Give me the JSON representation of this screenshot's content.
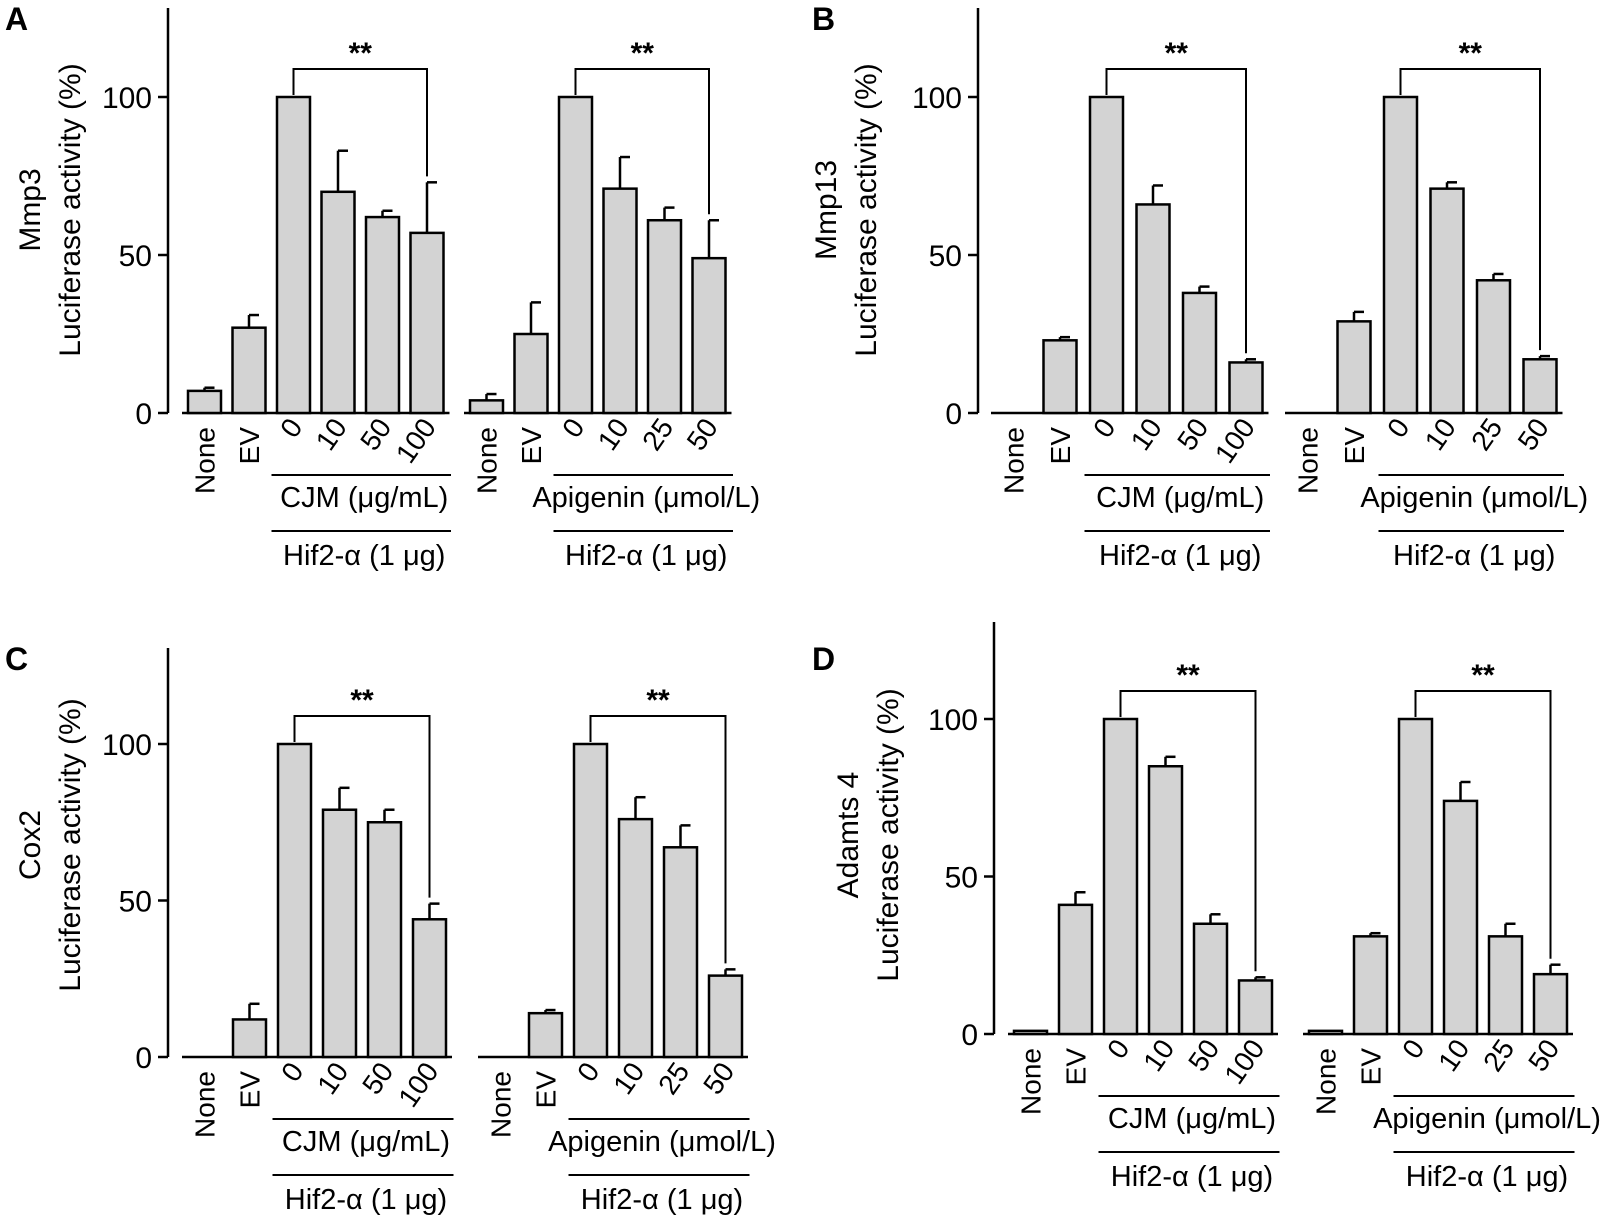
{
  "figure": {
    "panels": [
      {
        "letter": "A",
        "ylabel_top": "Mmp3",
        "ylabel_bottom": "Luciferase activity (%)"
      },
      {
        "letter": "B",
        "ylabel_top": "Mmp13",
        "ylabel_bottom": "Luciferase activity (%)"
      },
      {
        "letter": "C",
        "ylabel_top": "Cox2",
        "ylabel_bottom": "Luciferase activity (%)"
      },
      {
        "letter": "D",
        "ylabel_top": "Adamts 4",
        "ylabel_bottom": "Luciferase activity (%)"
      }
    ]
  },
  "chart_data": [
    {
      "type": "bar",
      "panel": "A",
      "ylabel": "Mmp3 Luciferase activity (%)",
      "ylim": [
        0,
        125
      ],
      "yticks": [
        0,
        50,
        100
      ],
      "groups": [
        {
          "categories": [
            "None",
            "EV",
            "0",
            "10",
            "50",
            "100"
          ],
          "values": [
            7,
            27,
            100,
            70,
            62,
            57
          ],
          "errors": [
            1,
            4,
            0,
            13,
            2,
            16
          ],
          "treatment_label": "CJM (μg/mL)",
          "hif_label": "Hif2-α (1 μg)",
          "significance": "**"
        },
        {
          "categories": [
            "None",
            "EV",
            "0",
            "10",
            "25",
            "50"
          ],
          "values": [
            4,
            25,
            100,
            71,
            61,
            49
          ],
          "errors": [
            2,
            10,
            0,
            10,
            4,
            12
          ],
          "treatment_label": "Apigenin (μmol/L)",
          "hif_label": "Hif2-α (1 μg)",
          "significance": "**"
        }
      ]
    },
    {
      "type": "bar",
      "panel": "B",
      "ylabel": "Mmp13 Luciferase activity (%)",
      "ylim": [
        0,
        125
      ],
      "yticks": [
        0,
        50,
        100
      ],
      "groups": [
        {
          "categories": [
            "None",
            "EV",
            "0",
            "10",
            "50",
            "100"
          ],
          "values": [
            0,
            23,
            100,
            66,
            38,
            16
          ],
          "errors": [
            0,
            1,
            0,
            6,
            2,
            1
          ],
          "treatment_label": "CJM (μg/mL)",
          "hif_label": "Hif2-α (1 μg)",
          "significance": "**"
        },
        {
          "categories": [
            "None",
            "EV",
            "0",
            "10",
            "25",
            "50"
          ],
          "values": [
            0,
            29,
            100,
            71,
            42,
            17
          ],
          "errors": [
            0,
            3,
            0,
            2,
            2,
            1
          ],
          "treatment_label": "Apigenin (μmol/L)",
          "hif_label": "Hif2-α (1 μg)",
          "significance": "**"
        }
      ]
    },
    {
      "type": "bar",
      "panel": "C",
      "ylabel": "Cox2 Luciferase activity (%)",
      "ylim": [
        0,
        130
      ],
      "yticks": [
        0,
        50,
        100
      ],
      "groups": [
        {
          "categories": [
            "None",
            "EV",
            "0",
            "10",
            "50",
            "100"
          ],
          "values": [
            0,
            12,
            100,
            79,
            75,
            44
          ],
          "errors": [
            0,
            5,
            0,
            7,
            4,
            5
          ],
          "treatment_label": "CJM (μg/mL)",
          "hif_label": "Hif2-α (1 μg)",
          "significance": "**"
        },
        {
          "categories": [
            "None",
            "EV",
            "0",
            "10",
            "25",
            "50"
          ],
          "values": [
            0,
            14,
            100,
            76,
            67,
            26
          ],
          "errors": [
            0,
            1,
            0,
            7,
            7,
            2
          ],
          "treatment_label": "Apigenin (μmol/L)",
          "hif_label": "Hif2-α (1 μg)",
          "significance": "**"
        }
      ]
    },
    {
      "type": "bar",
      "panel": "D",
      "ylabel": "Adamts 4 Luciferase activity (%)",
      "ylim": [
        0,
        130
      ],
      "yticks": [
        0,
        50,
        100
      ],
      "groups": [
        {
          "categories": [
            "None",
            "EV",
            "0",
            "10",
            "50",
            "100"
          ],
          "values": [
            1,
            41,
            100,
            85,
            35,
            17
          ],
          "errors": [
            0,
            4,
            0,
            3,
            3,
            1
          ],
          "treatment_label": "CJM (μg/mL)",
          "hif_label": "Hif2-α (1 μg)",
          "significance": "**"
        },
        {
          "categories": [
            "None",
            "EV",
            "0",
            "10",
            "25",
            "50"
          ],
          "values": [
            1,
            31,
            100,
            74,
            31,
            19
          ],
          "errors": [
            0,
            1,
            0,
            6,
            4,
            3
          ],
          "treatment_label": "Apigenin (μmol/L)",
          "hif_label": "Hif2-α (1 μg)",
          "significance": "**"
        }
      ]
    }
  ]
}
